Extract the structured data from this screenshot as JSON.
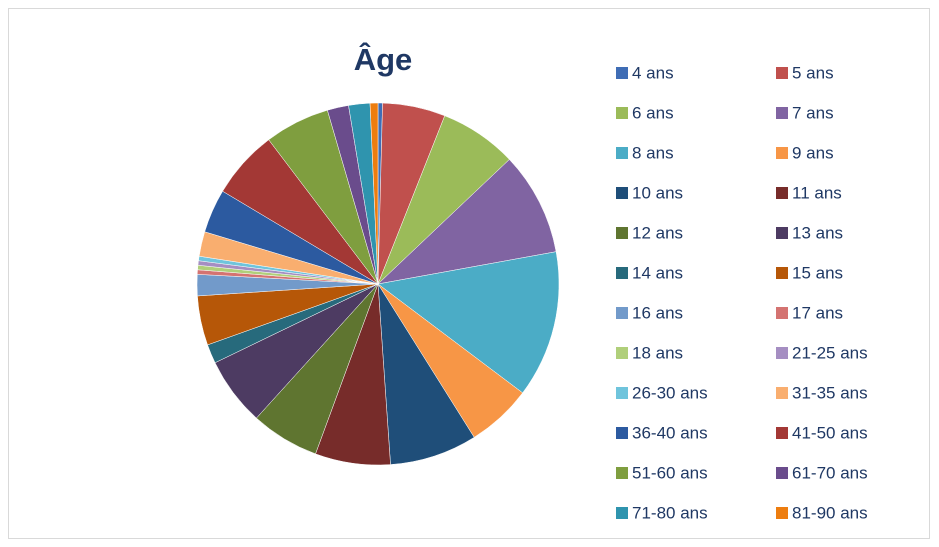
{
  "chart_data": {
    "type": "pie",
    "title": "Âge",
    "categories": [
      "4 ans",
      "5 ans",
      "6 ans",
      "7 ans",
      "8 ans",
      "9 ans",
      "10 ans",
      "11 ans",
      "12 ans",
      "13 ans",
      "14 ans",
      "15 ans",
      "16 ans",
      "17 ans",
      "18 ans",
      "21-25 ans",
      "26-30 ans",
      "31-35 ans",
      "36-40 ans",
      "41-50 ans",
      "51-60 ans",
      "61-70 ans",
      "71-80 ans",
      "81-90 ans"
    ],
    "values": [
      0.4,
      5.6,
      6.9,
      9.2,
      13.1,
      5.8,
      7.8,
      6.7,
      6.1,
      6.1,
      1.7,
      4.4,
      1.9,
      0.4,
      0.4,
      0.4,
      0.4,
      2.2,
      3.9,
      6.1,
      5.8,
      1.9,
      1.9,
      0.7
    ],
    "colors": [
      "#3f6db5",
      "#c0504d",
      "#9bbb59",
      "#8064a2",
      "#4bacc6",
      "#f79646",
      "#1f4e79",
      "#772c2a",
      "#5f7530",
      "#4d3b62",
      "#276a7c",
      "#b65708",
      "#729aca",
      "#d47371",
      "#b0cf7a",
      "#a58ec2",
      "#6fc4dc",
      "#f9ae6f",
      "#2c5aa0",
      "#a33835",
      "#7f9e3f",
      "#6a4c8c",
      "#2f94ae",
      "#ed7d0f"
    ],
    "legend": "right"
  }
}
